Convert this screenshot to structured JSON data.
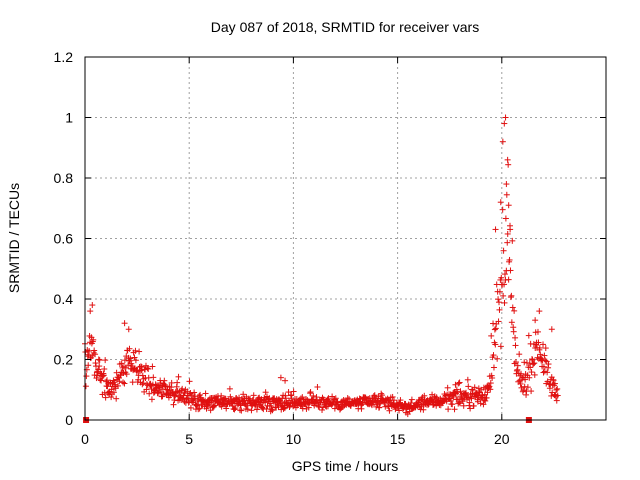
{
  "chart_data": {
    "type": "scatter",
    "title": "Day 087 of 2018, SRMTID for receiver vars",
    "xlabel": "GPS time / hours",
    "ylabel": "SRMTID / TECUs",
    "xlim": [
      0,
      25
    ],
    "ylim": [
      0,
      1.2
    ],
    "xticks": [
      0,
      5,
      10,
      15,
      20
    ],
    "xtick_labels": [
      "0",
      "5",
      "10",
      "15",
      "20"
    ],
    "yticks": [
      0,
      0.2,
      0.4,
      0.6,
      0.8,
      1.0,
      1.2
    ],
    "ytick_labels": [
      "0",
      "0.2",
      "0.4",
      "0.6",
      "0.8",
      "1",
      "1.2"
    ],
    "grid": true,
    "marker": "+",
    "color": "#e01010",
    "series": [
      {
        "name": "SRMTID",
        "profile": [
          [
            0.0,
            0.2,
            0.06
          ],
          [
            0.3,
            0.24,
            0.08
          ],
          [
            0.5,
            0.2,
            0.06
          ],
          [
            0.8,
            0.14,
            0.04
          ],
          [
            1.2,
            0.1,
            0.03
          ],
          [
            1.6,
            0.12,
            0.04
          ],
          [
            2.0,
            0.2,
            0.06
          ],
          [
            2.3,
            0.19,
            0.06
          ],
          [
            2.7,
            0.15,
            0.05
          ],
          [
            3.2,
            0.12,
            0.04
          ],
          [
            3.8,
            0.1,
            0.03
          ],
          [
            4.5,
            0.08,
            0.03
          ],
          [
            5.5,
            0.06,
            0.02
          ],
          [
            7.0,
            0.055,
            0.02
          ],
          [
            9.0,
            0.06,
            0.025
          ],
          [
            11.0,
            0.06,
            0.02
          ],
          [
            13.0,
            0.055,
            0.02
          ],
          [
            14.5,
            0.06,
            0.02
          ],
          [
            15.5,
            0.04,
            0.015
          ],
          [
            16.5,
            0.06,
            0.02
          ],
          [
            17.5,
            0.07,
            0.025
          ],
          [
            18.5,
            0.08,
            0.03
          ],
          [
            19.3,
            0.08,
            0.03
          ],
          [
            19.6,
            0.25,
            0.1
          ],
          [
            19.9,
            0.35,
            0.15
          ],
          [
            20.1,
            0.5,
            0.2
          ],
          [
            20.3,
            0.55,
            0.2
          ],
          [
            20.5,
            0.4,
            0.15
          ],
          [
            20.7,
            0.15,
            0.06
          ],
          [
            21.0,
            0.12,
            0.05
          ],
          [
            21.4,
            0.18,
            0.06
          ],
          [
            21.7,
            0.26,
            0.06
          ],
          [
            22.0,
            0.2,
            0.06
          ],
          [
            22.3,
            0.12,
            0.04
          ],
          [
            22.7,
            0.09,
            0.03
          ]
        ],
        "spikes": [
          [
            0.35,
            0.38
          ],
          [
            0.25,
            0.36
          ],
          [
            1.9,
            0.32
          ],
          [
            2.1,
            0.3
          ],
          [
            19.7,
            0.63
          ],
          [
            20.05,
            0.92
          ],
          [
            20.12,
            0.98
          ],
          [
            20.18,
            1.0
          ],
          [
            20.28,
            0.86
          ],
          [
            20.22,
            0.78
          ],
          [
            20.33,
            0.71
          ],
          [
            20.4,
            0.63
          ],
          [
            19.95,
            0.72
          ],
          [
            21.8,
            0.36
          ],
          [
            21.6,
            0.33
          ],
          [
            9.4,
            0.14
          ],
          [
            9.6,
            0.13
          ],
          [
            22.4,
            0.3
          ]
        ],
        "spacing_hours": 0.022
      }
    ],
    "offscale_markers": [
      {
        "x": 0.05,
        "y": 0
      },
      {
        "x": 21.3,
        "y": 0
      }
    ]
  }
}
